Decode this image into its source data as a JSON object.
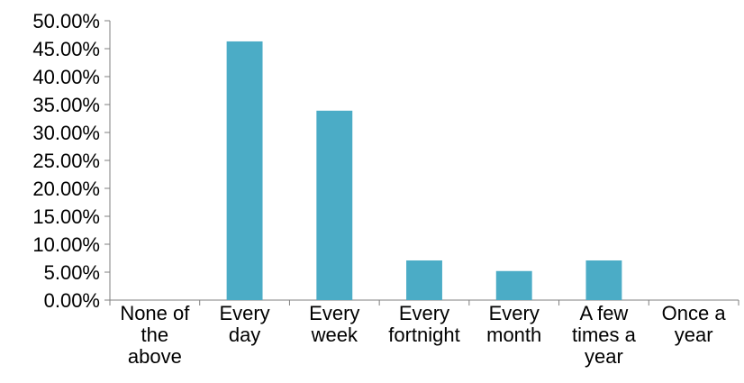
{
  "chart_data": {
    "type": "bar",
    "title": "",
    "xlabel": "",
    "ylabel": "",
    "categories": [
      [
        "None of",
        "the",
        "above"
      ],
      [
        "Every",
        "day"
      ],
      [
        "Every",
        "week"
      ],
      [
        "Every",
        "fortnight"
      ],
      [
        "Every",
        "month"
      ],
      [
        "A few",
        "times a",
        "year"
      ],
      [
        "Once a",
        "year"
      ]
    ],
    "values": [
      0,
      46.3,
      33.9,
      7.1,
      5.2,
      7.1,
      0
    ],
    "ylim": [
      0,
      50
    ],
    "yticks": [
      0,
      5,
      10,
      15,
      20,
      25,
      30,
      35,
      40,
      45,
      50
    ],
    "ytick_labels": [
      "0.00%",
      "5.00%",
      "10.00%",
      "15.00%",
      "20.00%",
      "25.00%",
      "30.00%",
      "35.00%",
      "40.00%",
      "45.00%",
      "50.00%"
    ],
    "grid": false,
    "legend": "none",
    "colors": {
      "bar": "#4BACC6",
      "axis": "#7F7F7F",
      "text": "#000000"
    }
  }
}
